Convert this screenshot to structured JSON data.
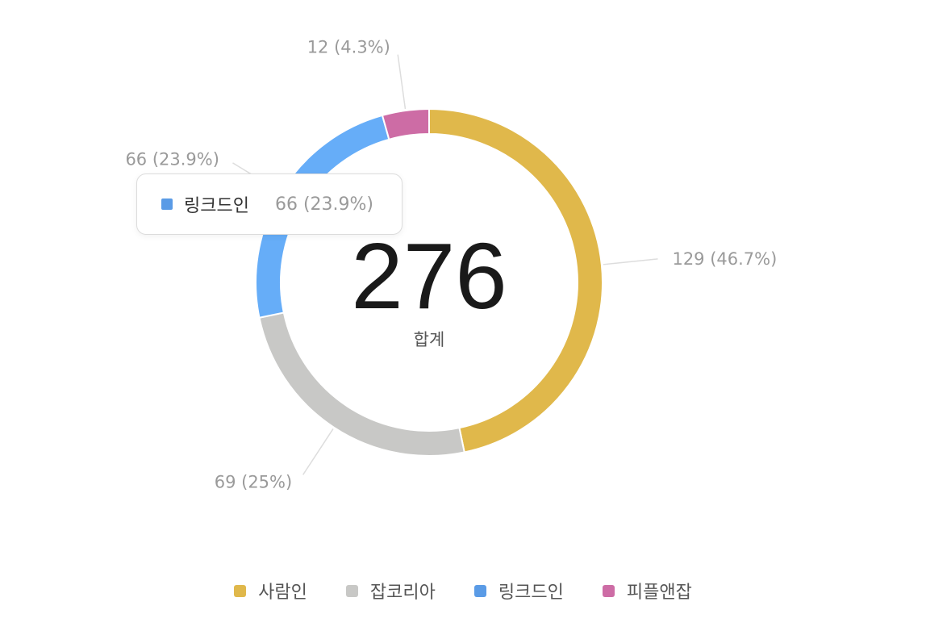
{
  "chart_data": {
    "type": "pie",
    "variant": "donut",
    "categories": [
      "사람인",
      "잡코리아",
      "링크드인",
      "피플앤잡"
    ],
    "values": [
      129,
      69,
      66,
      12
    ],
    "labels": [
      "129 (46.7%)",
      "69 (25%)",
      "66 (23.9%)",
      "12 (4.3%)"
    ],
    "colors": [
      "#E0B84B",
      "#C8C8C6",
      "#66ADF8",
      "#CD6CA5"
    ],
    "center": {
      "total": "276",
      "caption": "합계"
    },
    "legend_position": "bottom-center",
    "legend": [
      {
        "name": "사람인",
        "color": "#E0B84B"
      },
      {
        "name": "잡코리아",
        "color": "#C8C8C6"
      },
      {
        "name": "링크드인",
        "color": "#5A9BE6"
      },
      {
        "name": "피플앤잡",
        "color": "#CD6CA5"
      }
    ],
    "tooltip": {
      "name": "링크드인",
      "value": "66 (23.9%)",
      "color": "#5A9BE6"
    }
  }
}
